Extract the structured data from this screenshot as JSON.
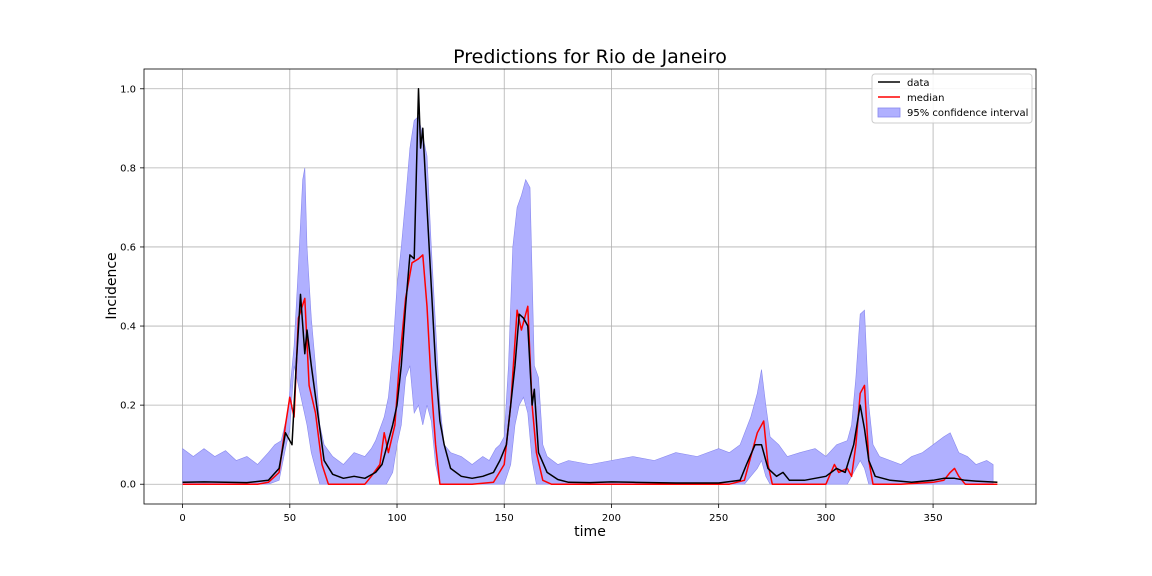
{
  "chart_data": {
    "type": "line",
    "title": "Predictions for Rio de Janeiro",
    "xlabel": "time",
    "ylabel": "Incidence",
    "xlim": [
      -18,
      398
    ],
    "ylim": [
      -0.05,
      1.05
    ],
    "xticks": [
      0,
      50,
      100,
      150,
      200,
      250,
      300,
      350
    ],
    "yticks": [
      0.0,
      0.2,
      0.4,
      0.6,
      0.8,
      1.0
    ],
    "xtick_labels": [
      "0",
      "50",
      "100",
      "150",
      "200",
      "250",
      "300",
      "350"
    ],
    "ytick_labels": [
      "0.0",
      "0.2",
      "0.4",
      "0.6",
      "0.8",
      "1.0"
    ],
    "grid": true,
    "legend_position": "top-right",
    "colors": {
      "data": "#000000",
      "median": "#ff0000",
      "band": "#b0b0ff",
      "band_edge": "#8888ee",
      "grid": "#b0b0b0"
    },
    "series": [
      {
        "name": "data",
        "points": [
          [
            0,
            0.005
          ],
          [
            10,
            0.006
          ],
          [
            20,
            0.005
          ],
          [
            30,
            0.004
          ],
          [
            40,
            0.01
          ],
          [
            45,
            0.04
          ],
          [
            48,
            0.13
          ],
          [
            51,
            0.1
          ],
          [
            53,
            0.3
          ],
          [
            55,
            0.48
          ],
          [
            57,
            0.33
          ],
          [
            58,
            0.39
          ],
          [
            60,
            0.3
          ],
          [
            63,
            0.18
          ],
          [
            66,
            0.06
          ],
          [
            70,
            0.025
          ],
          [
            75,
            0.015
          ],
          [
            80,
            0.02
          ],
          [
            85,
            0.015
          ],
          [
            90,
            0.03
          ],
          [
            93,
            0.05
          ],
          [
            95,
            0.09
          ],
          [
            98,
            0.15
          ],
          [
            100,
            0.2
          ],
          [
            102,
            0.3
          ],
          [
            104,
            0.45
          ],
          [
            106,
            0.58
          ],
          [
            108,
            0.57
          ],
          [
            110,
            1.0
          ],
          [
            111,
            0.85
          ],
          [
            112,
            0.9
          ],
          [
            114,
            0.7
          ],
          [
            116,
            0.5
          ],
          [
            118,
            0.3
          ],
          [
            120,
            0.16
          ],
          [
            122,
            0.1
          ],
          [
            125,
            0.04
          ],
          [
            130,
            0.02
          ],
          [
            135,
            0.015
          ],
          [
            140,
            0.02
          ],
          [
            145,
            0.03
          ],
          [
            148,
            0.06
          ],
          [
            151,
            0.1
          ],
          [
            153,
            0.2
          ],
          [
            155,
            0.3
          ],
          [
            157,
            0.43
          ],
          [
            159,
            0.42
          ],
          [
            161,
            0.4
          ],
          [
            163,
            0.2
          ],
          [
            164,
            0.24
          ],
          [
            166,
            0.08
          ],
          [
            170,
            0.03
          ],
          [
            175,
            0.012
          ],
          [
            180,
            0.005
          ],
          [
            190,
            0.004
          ],
          [
            200,
            0.006
          ],
          [
            210,
            0.005
          ],
          [
            230,
            0.003
          ],
          [
            250,
            0.003
          ],
          [
            260,
            0.01
          ],
          [
            263,
            0.05
          ],
          [
            267,
            0.1
          ],
          [
            270,
            0.1
          ],
          [
            273,
            0.04
          ],
          [
            277,
            0.02
          ],
          [
            280,
            0.03
          ],
          [
            283,
            0.01
          ],
          [
            290,
            0.01
          ],
          [
            300,
            0.02
          ],
          [
            305,
            0.04
          ],
          [
            309,
            0.03
          ],
          [
            313,
            0.1
          ],
          [
            316,
            0.2
          ],
          [
            318,
            0.14
          ],
          [
            320,
            0.06
          ],
          [
            323,
            0.02
          ],
          [
            330,
            0.01
          ],
          [
            340,
            0.005
          ],
          [
            350,
            0.01
          ],
          [
            355,
            0.015
          ],
          [
            360,
            0.015
          ],
          [
            365,
            0.01
          ],
          [
            370,
            0.008
          ],
          [
            380,
            0.005
          ]
        ]
      },
      {
        "name": "median",
        "points": [
          [
            0,
            0.0
          ],
          [
            20,
            0.0
          ],
          [
            35,
            0.0
          ],
          [
            40,
            0.005
          ],
          [
            45,
            0.03
          ],
          [
            48,
            0.15
          ],
          [
            50,
            0.22
          ],
          [
            52,
            0.17
          ],
          [
            54,
            0.42
          ],
          [
            57,
            0.47
          ],
          [
            59,
            0.25
          ],
          [
            62,
            0.18
          ],
          [
            65,
            0.05
          ],
          [
            68,
            0.0
          ],
          [
            75,
            0.0
          ],
          [
            85,
            0.0
          ],
          [
            88,
            0.02
          ],
          [
            92,
            0.05
          ],
          [
            94,
            0.13
          ],
          [
            96,
            0.08
          ],
          [
            99,
            0.15
          ],
          [
            101,
            0.3
          ],
          [
            104,
            0.47
          ],
          [
            107,
            0.56
          ],
          [
            110,
            0.57
          ],
          [
            112,
            0.58
          ],
          [
            114,
            0.45
          ],
          [
            116,
            0.25
          ],
          [
            118,
            0.1
          ],
          [
            120,
            0.0
          ],
          [
            135,
            0.0
          ],
          [
            145,
            0.005
          ],
          [
            150,
            0.05
          ],
          [
            153,
            0.2
          ],
          [
            156,
            0.44
          ],
          [
            158,
            0.39
          ],
          [
            161,
            0.45
          ],
          [
            163,
            0.2
          ],
          [
            165,
            0.08
          ],
          [
            168,
            0.01
          ],
          [
            172,
            0.0
          ],
          [
            200,
            0.0
          ],
          [
            255,
            0.0
          ],
          [
            262,
            0.01
          ],
          [
            265,
            0.07
          ],
          [
            268,
            0.13
          ],
          [
            271,
            0.16
          ],
          [
            273,
            0.05
          ],
          [
            275,
            0.0
          ],
          [
            300,
            0.0
          ],
          [
            304,
            0.05
          ],
          [
            306,
            0.03
          ],
          [
            310,
            0.04
          ],
          [
            312,
            0.02
          ],
          [
            314,
            0.1
          ],
          [
            316,
            0.23
          ],
          [
            318,
            0.25
          ],
          [
            320,
            0.06
          ],
          [
            322,
            0.0
          ],
          [
            335,
            0.0
          ],
          [
            350,
            0.005
          ],
          [
            355,
            0.01
          ],
          [
            358,
            0.03
          ],
          [
            360,
            0.04
          ],
          [
            362,
            0.02
          ],
          [
            365,
            0.0
          ],
          [
            380,
            0.0
          ]
        ]
      }
    ],
    "band": {
      "name": "95% confidence interval",
      "upper": [
        [
          0,
          0.09
        ],
        [
          5,
          0.07
        ],
        [
          10,
          0.09
        ],
        [
          15,
          0.07
        ],
        [
          20,
          0.085
        ],
        [
          25,
          0.06
        ],
        [
          30,
          0.07
        ],
        [
          35,
          0.05
        ],
        [
          40,
          0.08
        ],
        [
          43,
          0.1
        ],
        [
          46,
          0.11
        ],
        [
          49,
          0.18
        ],
        [
          52,
          0.35
        ],
        [
          54,
          0.55
        ],
        [
          56,
          0.77
        ],
        [
          57,
          0.8
        ],
        [
          58,
          0.6
        ],
        [
          60,
          0.42
        ],
        [
          62,
          0.3
        ],
        [
          64,
          0.15
        ],
        [
          66,
          0.1
        ],
        [
          70,
          0.07
        ],
        [
          75,
          0.05
        ],
        [
          80,
          0.08
        ],
        [
          85,
          0.07
        ],
        [
          88,
          0.09
        ],
        [
          90,
          0.11
        ],
        [
          92,
          0.14
        ],
        [
          94,
          0.17
        ],
        [
          96,
          0.22
        ],
        [
          98,
          0.33
        ],
        [
          100,
          0.5
        ],
        [
          102,
          0.6
        ],
        [
          104,
          0.72
        ],
        [
          106,
          0.85
        ],
        [
          108,
          0.92
        ],
        [
          110,
          0.93
        ],
        [
          112,
          0.88
        ],
        [
          114,
          0.83
        ],
        [
          116,
          0.6
        ],
        [
          118,
          0.4
        ],
        [
          120,
          0.2
        ],
        [
          122,
          0.1
        ],
        [
          125,
          0.08
        ],
        [
          130,
          0.07
        ],
        [
          135,
          0.05
        ],
        [
          140,
          0.07
        ],
        [
          143,
          0.06
        ],
        [
          146,
          0.09
        ],
        [
          148,
          0.1
        ],
        [
          150,
          0.12
        ],
        [
          152,
          0.3
        ],
        [
          154,
          0.6
        ],
        [
          156,
          0.7
        ],
        [
          158,
          0.73
        ],
        [
          160,
          0.77
        ],
        [
          162,
          0.75
        ],
        [
          164,
          0.3
        ],
        [
          166,
          0.27
        ],
        [
          168,
          0.1
        ],
        [
          170,
          0.07
        ],
        [
          175,
          0.05
        ],
        [
          180,
          0.06
        ],
        [
          190,
          0.05
        ],
        [
          200,
          0.06
        ],
        [
          210,
          0.07
        ],
        [
          220,
          0.06
        ],
        [
          230,
          0.08
        ],
        [
          240,
          0.07
        ],
        [
          250,
          0.09
        ],
        [
          255,
          0.08
        ],
        [
          260,
          0.1
        ],
        [
          265,
          0.17
        ],
        [
          268,
          0.23
        ],
        [
          270,
          0.29
        ],
        [
          272,
          0.2
        ],
        [
          274,
          0.12
        ],
        [
          278,
          0.1
        ],
        [
          282,
          0.07
        ],
        [
          288,
          0.08
        ],
        [
          295,
          0.09
        ],
        [
          300,
          0.07
        ],
        [
          305,
          0.1
        ],
        [
          310,
          0.11
        ],
        [
          312,
          0.15
        ],
        [
          314,
          0.27
        ],
        [
          316,
          0.43
        ],
        [
          318,
          0.44
        ],
        [
          320,
          0.2
        ],
        [
          322,
          0.1
        ],
        [
          325,
          0.07
        ],
        [
          330,
          0.06
        ],
        [
          335,
          0.05
        ],
        [
          340,
          0.07
        ],
        [
          345,
          0.08
        ],
        [
          350,
          0.1
        ],
        [
          355,
          0.12
        ],
        [
          358,
          0.13
        ],
        [
          362,
          0.08
        ],
        [
          366,
          0.07
        ],
        [
          370,
          0.05
        ],
        [
          375,
          0.06
        ],
        [
          378,
          0.05
        ]
      ],
      "lower": [
        [
          0,
          0.0
        ],
        [
          40,
          0.0
        ],
        [
          45,
          0.01
        ],
        [
          48,
          0.09
        ],
        [
          50,
          0.14
        ],
        [
          52,
          0.3
        ],
        [
          54,
          0.25
        ],
        [
          56,
          0.2
        ],
        [
          58,
          0.15
        ],
        [
          60,
          0.08
        ],
        [
          62,
          0.04
        ],
        [
          64,
          0.0
        ],
        [
          95,
          0.0
        ],
        [
          98,
          0.03
        ],
        [
          100,
          0.1
        ],
        [
          102,
          0.15
        ],
        [
          104,
          0.27
        ],
        [
          106,
          0.3
        ],
        [
          108,
          0.18
        ],
        [
          110,
          0.2
        ],
        [
          112,
          0.15
        ],
        [
          114,
          0.2
        ],
        [
          116,
          0.16
        ],
        [
          118,
          0.05
        ],
        [
          120,
          0.0
        ],
        [
          150,
          0.0
        ],
        [
          153,
          0.05
        ],
        [
          155,
          0.15
        ],
        [
          157,
          0.2
        ],
        [
          159,
          0.22
        ],
        [
          161,
          0.18
        ],
        [
          163,
          0.06
        ],
        [
          165,
          0.0
        ],
        [
          262,
          0.0
        ],
        [
          265,
          0.02
        ],
        [
          268,
          0.04
        ],
        [
          270,
          0.06
        ],
        [
          272,
          0.02
        ],
        [
          274,
          0.0
        ],
        [
          310,
          0.0
        ],
        [
          313,
          0.03
        ],
        [
          316,
          0.06
        ],
        [
          318,
          0.04
        ],
        [
          320,
          0.0
        ],
        [
          378,
          0.0
        ]
      ]
    }
  }
}
